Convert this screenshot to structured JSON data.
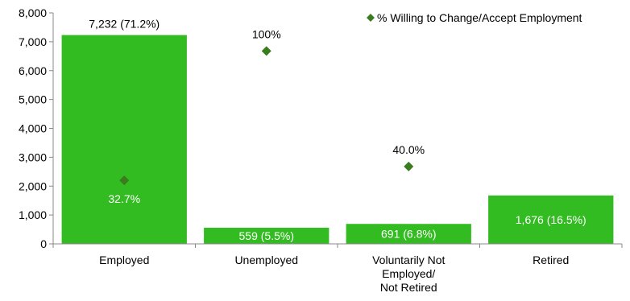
{
  "chart_data": {
    "type": "bar",
    "categories": [
      "Employed",
      "Unemployed",
      "Voluntarily Not Employed/ Not Retired",
      "Retired"
    ],
    "category_label_lines": [
      [
        "Employed"
      ],
      [
        "Unemployed"
      ],
      [
        "Voluntarily Not",
        "Employed/",
        "Not Retired"
      ],
      [
        "Retired"
      ]
    ],
    "values": [
      7232,
      559,
      691,
      1676
    ],
    "bar_labels": [
      "7,232 (71.2%)",
      "559 (5.5%)",
      "691 (6.8%)",
      "1,676 (16.5%)"
    ],
    "bar_label_position": [
      "above",
      "inside",
      "inside",
      "inside"
    ],
    "bar_color": "#33bb22",
    "ylim": [
      0,
      8000
    ],
    "yticks": [
      0,
      1000,
      2000,
      3000,
      4000,
      5000,
      6000,
      7000,
      8000
    ],
    "ytick_labels": [
      "0",
      "1,000",
      "2,000",
      "3,000",
      "4,000",
      "5,000",
      "6,000",
      "7,000",
      "8,000"
    ],
    "grid": false,
    "marker_series": {
      "name": "% Willing to Change/Accept Employment",
      "marker": "diamond",
      "color": "#3a7d1e",
      "y_positions": [
        2200,
        6680,
        null,
        2680
      ],
      "labels": [
        "32.7%",
        "100%",
        null,
        "40.0%"
      ],
      "label_position": [
        "below",
        "above",
        null,
        "above"
      ],
      "category_index": [
        0,
        1,
        null,
        2
      ]
    },
    "legend": {
      "position": "top-right"
    }
  }
}
